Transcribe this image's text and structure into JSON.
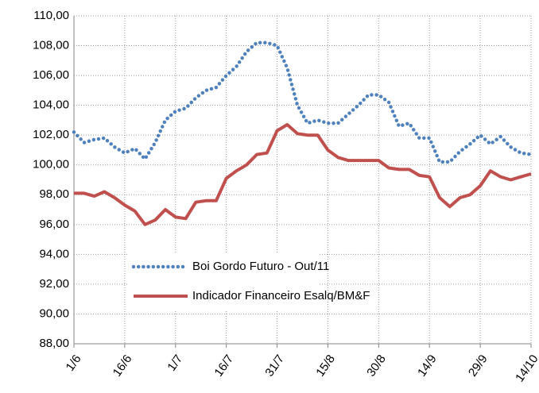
{
  "chart_data": {
    "type": "line",
    "categories": [
      "1/6",
      null,
      null,
      null,
      null,
      "16/6",
      null,
      null,
      null,
      null,
      "1/7",
      null,
      null,
      null,
      null,
      "16/7",
      null,
      null,
      null,
      null,
      "31/7",
      null,
      null,
      null,
      null,
      "15/8",
      null,
      null,
      null,
      null,
      "30/8",
      null,
      null,
      null,
      null,
      "14/9",
      null,
      null,
      null,
      null,
      "29/9",
      null,
      null,
      null,
      null,
      "14/10"
    ],
    "series": [
      {
        "name": "Boi Gordo Futuro - Out/11",
        "color": "#4f81bd",
        "style": "dotted",
        "values": [
          102.2,
          101.5,
          101.7,
          101.8,
          101.2,
          100.8,
          101.1,
          100.4,
          101.5,
          103.0,
          103.6,
          103.8,
          104.5,
          105.0,
          105.2,
          106.0,
          106.6,
          107.6,
          108.2,
          108.2,
          108.0,
          106.5,
          104.0,
          102.8,
          103.0,
          102.8,
          102.8,
          103.4,
          104.0,
          104.7,
          104.7,
          104.2,
          102.6,
          102.8,
          101.8,
          101.8,
          100.2,
          100.2,
          100.9,
          101.4,
          102.0,
          101.4,
          101.9,
          101.2,
          100.8,
          100.7
        ]
      },
      {
        "name": "Indicador Financeiro Esalq/BM&F",
        "color": "#c0504d",
        "style": "solid",
        "values": [
          98.1,
          98.1,
          97.9,
          98.2,
          97.8,
          97.3,
          96.9,
          96.0,
          96.3,
          97.0,
          96.5,
          96.4,
          97.5,
          97.6,
          97.6,
          99.1,
          99.6,
          100.0,
          100.7,
          100.8,
          102.3,
          102.7,
          102.1,
          102.0,
          102.0,
          101.0,
          100.5,
          100.3,
          100.3,
          100.3,
          100.3,
          99.8,
          99.7,
          99.7,
          99.3,
          99.2,
          97.8,
          97.2,
          97.8,
          98.0,
          98.6,
          99.6,
          99.2,
          99.0,
          99.2,
          99.4
        ]
      }
    ],
    "ylim": [
      88,
      110
    ],
    "yticks": [
      {
        "value": 88,
        "label": "88,00"
      },
      {
        "value": 90,
        "label": "90,00"
      },
      {
        "value": 92,
        "label": "92,00"
      },
      {
        "value": 94,
        "label": "94,00"
      },
      {
        "value": 96,
        "label": "96,00"
      },
      {
        "value": 98,
        "label": "98,00"
      },
      {
        "value": 100,
        "label": "100,00"
      },
      {
        "value": 102,
        "label": "102,00"
      },
      {
        "value": 104,
        "label": "104,00"
      },
      {
        "value": 106,
        "label": "106,00"
      },
      {
        "value": 108,
        "label": "108,00"
      },
      {
        "value": 110,
        "label": "110,00"
      }
    ],
    "grid": true,
    "legend": "lower left"
  }
}
